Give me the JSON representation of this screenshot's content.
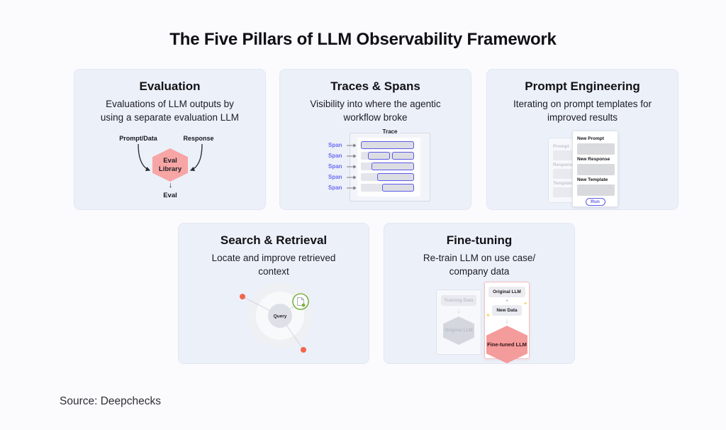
{
  "page": {
    "title": "The Five Pillars of LLM Observability Framework",
    "source": "Source: Deepchecks"
  },
  "colors": {
    "background": "#FBFBFE",
    "card_bg": "#ECF0F9",
    "accent_pink": "#F7A5A5",
    "accent_indigo": "#5B5BE8",
    "accent_coral": "#F2664C",
    "accent_green": "#7CB142",
    "sparkle_yellow": "#F4CE4E",
    "text_dark": "#15151B"
  },
  "icons": {
    "down_arrow": "↓",
    "plus": "+",
    "sparkle": "✦"
  },
  "cards": {
    "evaluation": {
      "title": "Evaluation",
      "description": "Evaluations of LLM outputs by using a separate evaluation LLM",
      "diagram": {
        "input_left": "Prompt/Data",
        "input_right": "Response",
        "hexagon": "Eval Library",
        "output": "Eval"
      }
    },
    "traces": {
      "title": "Traces & Spans",
      "description": "Visibility into where the agentic workflow broke",
      "diagram": {
        "container_label": "Trace",
        "row_label": "Span",
        "rows": [
          {
            "bars": [
              {
                "start": 0,
                "end": 100
              }
            ]
          },
          {
            "bars": [
              {
                "start": 13,
                "end": 54
              },
              {
                "start": 58,
                "end": 100
              }
            ]
          },
          {
            "bars": [
              {
                "start": 20,
                "end": 100
              }
            ]
          },
          {
            "bars": [
              {
                "start": 30,
                "end": 100
              }
            ]
          },
          {
            "bars": [
              {
                "start": 40,
                "end": 100
              }
            ]
          }
        ]
      }
    },
    "prompt_engineering": {
      "title": "Prompt Engineering",
      "description": "Iterating on prompt templates for improved results",
      "diagram": {
        "back_labels": [
          "Prompt",
          "Response",
          "Template"
        ],
        "front_labels": [
          "New Prompt",
          "New Response",
          "New Template"
        ],
        "run_button": "Run"
      }
    },
    "search_retrieval": {
      "title": "Search & Retrieval",
      "description": "Locate and improve retrieved context",
      "diagram": {
        "center_label": "Query"
      }
    },
    "fine_tuning": {
      "title": "Fine-tuning",
      "description": "Re-train LLM on use case/ company data",
      "diagram": {
        "back_panel": {
          "data_label": "Training Data",
          "hexagon": "Original LLM"
        },
        "front_panel": {
          "top_label": "Original LLM",
          "data_label": "New Data",
          "hexagon": "Fine-tuned LLM"
        }
      }
    }
  }
}
